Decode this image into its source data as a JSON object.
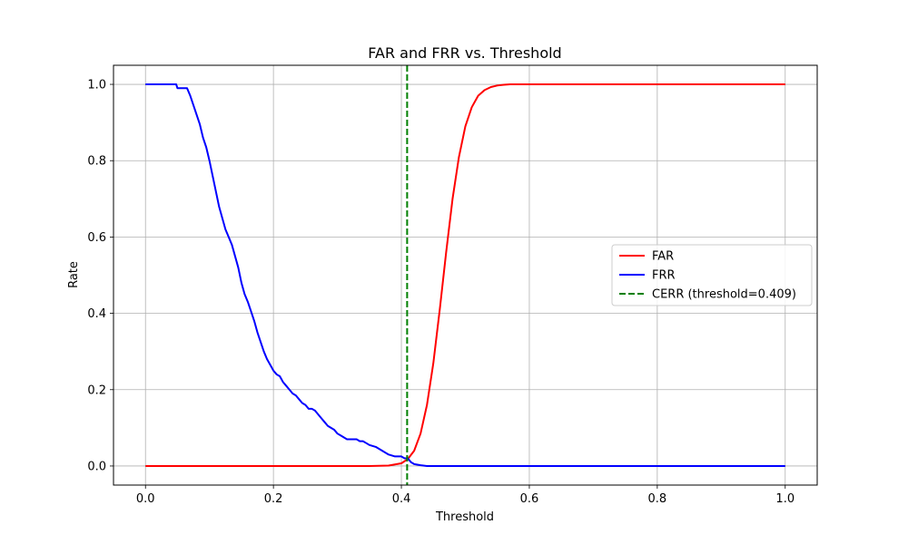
{
  "chart_data": {
    "type": "line",
    "title": "FAR and FRR vs. Threshold",
    "xlabel": "Threshold",
    "ylabel": "Rate",
    "xlim": [
      -0.05,
      1.05
    ],
    "ylim": [
      -0.05,
      1.05
    ],
    "xticks": [
      0.0,
      0.2,
      0.4,
      0.6,
      0.8,
      1.0
    ],
    "xtick_labels": [
      "0.0",
      "0.2",
      "0.4",
      "0.6",
      "0.8",
      "1.0"
    ],
    "yticks": [
      0.0,
      0.2,
      0.4,
      0.6,
      0.8,
      1.0
    ],
    "ytick_labels": [
      "0.0",
      "0.2",
      "0.4",
      "0.6",
      "0.8",
      "1.0"
    ],
    "grid": true,
    "legend_position": "center-right",
    "series": [
      {
        "name": "FAR",
        "color": "#ff0000",
        "style": "solid",
        "x": [
          0.0,
          0.35,
          0.38,
          0.4,
          0.41,
          0.42,
          0.43,
          0.44,
          0.45,
          0.46,
          0.47,
          0.48,
          0.49,
          0.5,
          0.51,
          0.52,
          0.53,
          0.54,
          0.55,
          0.56,
          0.57,
          0.58,
          1.0
        ],
        "y": [
          0.0,
          0.0,
          0.001,
          0.007,
          0.018,
          0.04,
          0.085,
          0.16,
          0.27,
          0.41,
          0.56,
          0.7,
          0.81,
          0.89,
          0.94,
          0.97,
          0.985,
          0.993,
          0.997,
          0.999,
          1.0,
          1.0,
          1.0
        ]
      },
      {
        "name": "FRR",
        "color": "#0000ff",
        "style": "solid",
        "x": [
          0.0,
          0.048,
          0.05,
          0.065,
          0.07,
          0.075,
          0.08,
          0.085,
          0.09,
          0.095,
          0.1,
          0.105,
          0.11,
          0.115,
          0.12,
          0.125,
          0.13,
          0.135,
          0.14,
          0.145,
          0.15,
          0.155,
          0.16,
          0.165,
          0.17,
          0.175,
          0.18,
          0.185,
          0.19,
          0.195,
          0.2,
          0.205,
          0.21,
          0.215,
          0.22,
          0.225,
          0.23,
          0.235,
          0.24,
          0.245,
          0.25,
          0.255,
          0.26,
          0.265,
          0.27,
          0.275,
          0.28,
          0.285,
          0.29,
          0.295,
          0.3,
          0.305,
          0.31,
          0.315,
          0.32,
          0.33,
          0.335,
          0.34,
          0.345,
          0.35,
          0.36,
          0.37,
          0.38,
          0.39,
          0.4,
          0.405,
          0.41,
          0.415,
          0.42,
          0.43,
          0.44,
          1.0
        ],
        "y": [
          1.0,
          1.0,
          0.99,
          0.99,
          0.97,
          0.945,
          0.92,
          0.895,
          0.86,
          0.835,
          0.8,
          0.76,
          0.72,
          0.68,
          0.65,
          0.62,
          0.6,
          0.58,
          0.55,
          0.52,
          0.48,
          0.45,
          0.43,
          0.405,
          0.38,
          0.35,
          0.325,
          0.3,
          0.28,
          0.265,
          0.25,
          0.24,
          0.235,
          0.22,
          0.21,
          0.2,
          0.19,
          0.185,
          0.175,
          0.165,
          0.16,
          0.15,
          0.15,
          0.145,
          0.135,
          0.125,
          0.115,
          0.105,
          0.1,
          0.095,
          0.085,
          0.08,
          0.075,
          0.07,
          0.07,
          0.07,
          0.065,
          0.065,
          0.06,
          0.055,
          0.05,
          0.04,
          0.03,
          0.025,
          0.025,
          0.02,
          0.02,
          0.01,
          0.005,
          0.002,
          0.0,
          0.0
        ]
      },
      {
        "name": "CERR (threshold=0.409)",
        "color": "#008000",
        "style": "dashed",
        "vline": 0.409
      }
    ]
  }
}
